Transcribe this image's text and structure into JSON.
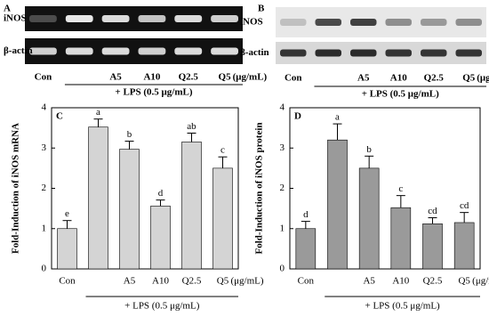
{
  "panels": [
    {
      "letter": "A",
      "rows": [
        "iNOS",
        "β-actin"
      ],
      "lanes": [
        "Con",
        null,
        "A5",
        "A10",
        "Q2.5",
        "Q5"
      ],
      "unit": "(μg/mL)",
      "treatment": "+ LPS (0.5 μg/mL)"
    },
    {
      "letter": "B",
      "rows": [
        "iNOS",
        "β-actin"
      ],
      "lanes": [
        "Con",
        null,
        "A5",
        "A10",
        "Q2.5",
        "Q5"
      ],
      "unit": "(μg/mL)",
      "treatment": "+ LPS (0.5 μg/mL)"
    }
  ],
  "chart_data": [
    {
      "type": "bar",
      "panel": "C",
      "y_label": "Fold-Induction of iNOS mRNA",
      "categories": [
        "Con",
        null,
        "A5",
        "A10",
        "Q2.5",
        "Q5"
      ],
      "values": [
        1.0,
        3.52,
        2.97,
        1.56,
        3.15,
        2.5
      ],
      "errors": [
        0.2,
        0.2,
        0.2,
        0.15,
        0.22,
        0.28
      ],
      "letters": [
        "e",
        "a",
        "b",
        "d",
        "ab",
        "c"
      ],
      "unit": "(μg/mL)",
      "treatment": "+ LPS (0.5 μg/mL)",
      "color": "#d4d4d4",
      "ylim": [
        0,
        4
      ],
      "yticks": [
        0,
        1,
        2,
        3,
        4
      ]
    },
    {
      "type": "bar",
      "panel": "D",
      "y_label": "Fold-Induction of  iNOS protein",
      "categories": [
        "Con",
        null,
        "A5",
        "A10",
        "Q2.5",
        "Q5"
      ],
      "values": [
        1.0,
        3.2,
        2.5,
        1.52,
        1.12,
        1.15
      ],
      "errors": [
        0.18,
        0.4,
        0.3,
        0.3,
        0.15,
        0.25
      ],
      "letters": [
        "d",
        "a",
        "b",
        "c",
        "cd",
        "cd"
      ],
      "unit": "(μg/mL)",
      "treatment": "+ LPS (0.5 μg/mL)",
      "color": "#9a9a9a",
      "ylim": [
        0,
        4
      ],
      "yticks": [
        0,
        1,
        2,
        3,
        4
      ]
    }
  ]
}
